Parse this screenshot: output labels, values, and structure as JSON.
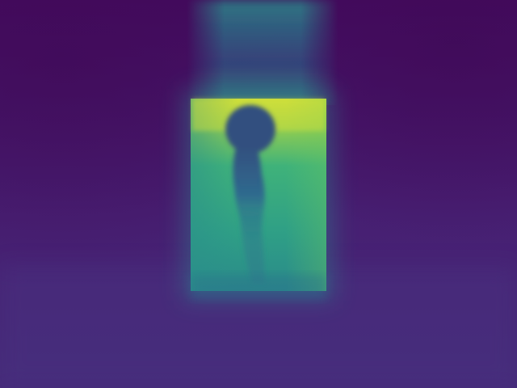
{
  "image": {
    "kind": "depth-map",
    "colormap": "viridis",
    "palette": {
      "far_dark": "#440a5e",
      "room_purple": "#471f72",
      "floor_purple": "#452b7a",
      "doorway_teal": "#2a8a8a",
      "doorway_green": "#3fb27a",
      "doorway_yellow": "#c9dc3a",
      "silhouette_blue": "#2f5f8e"
    }
  }
}
